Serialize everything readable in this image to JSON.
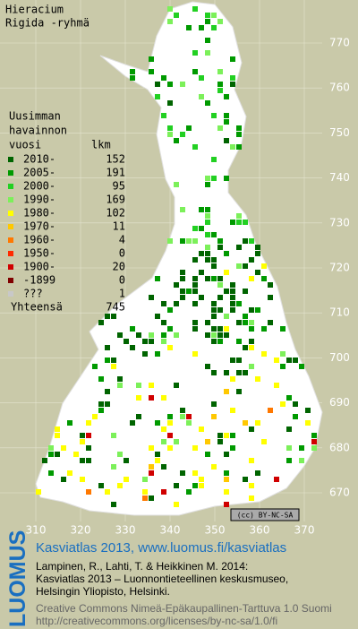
{
  "map": {
    "title": "Hieracium",
    "subtitle": "Rigida -ryhmä",
    "legend": {
      "heading": [
        "Uusimman",
        "havainnon",
        "vuosi"
      ],
      "count_heading": "lkm",
      "rows": [
        {
          "label": "2010-",
          "count": "152",
          "color": "#006400"
        },
        {
          "label": "2005-",
          "count": "191",
          "color": "#009a00"
        },
        {
          "label": "2000-",
          "count": "95",
          "color": "#22d022"
        },
        {
          "label": "1990-",
          "count": "169",
          "color": "#7cf05a"
        },
        {
          "label": "1980-",
          "count": "102",
          "color": "#ffff00"
        },
        {
          "label": "1970-",
          "count": "11",
          "color": "#ffc800"
        },
        {
          "label": "1960-",
          "count": "4",
          "color": "#ff7800"
        },
        {
          "label": "1950-",
          "count": "0",
          "color": "#ff2a00"
        },
        {
          "label": "1900-",
          "count": "20",
          "color": "#d00000"
        },
        {
          "label": "-1899",
          "count": "0",
          "color": "#800000"
        },
        {
          "label": "???",
          "count": "1",
          "color": "#c8c8c8"
        }
      ],
      "total_label": "Yhteensä",
      "total": "745"
    },
    "y_labels": [
      "770",
      "760",
      "750",
      "740",
      "730",
      "720",
      "710",
      "700",
      "690",
      "680",
      "670"
    ],
    "x_labels": [
      "310",
      "320",
      "330",
      "340",
      "350",
      "360",
      "370"
    ],
    "license_badge": "(cc) BY-NC-SA",
    "footer": {
      "brand": "LUOMUS",
      "title": "Kasviatlas 2013, www.luomus.fi/kasviatlas",
      "citation": [
        "Lampinen, R., Lahti, T. & Heikkinen M. 2014:",
        "Kasviatlas 2013 – Luonnontieteellinen keskusmuseo,",
        "Helsingin Yliopisto, Helsinki."
      ],
      "license": [
        "Creative Commons Nimeä-Epäkaupallinen-Tarttuva 1.0 Suomi",
        "http://creativecommons.org/licenses/by-nc-sa/1.0/fi"
      ]
    }
  }
}
